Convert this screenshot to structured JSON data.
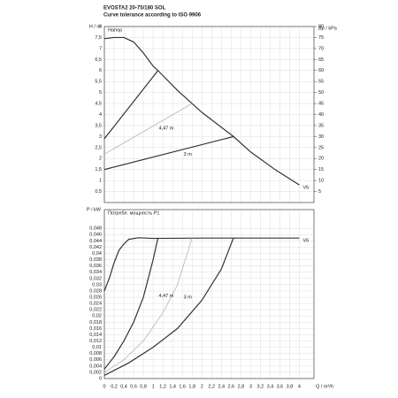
{
  "header": {
    "title": "EVOSTA2 20-75/180 SOL",
    "subtitle": "Curve tolerance according to ISO 9906"
  },
  "chart_data": [
    {
      "type": "line",
      "ylabel": "H / m",
      "title": "Напор",
      "y2label": "Δp / kPa",
      "xlim": [
        0,
        4.3
      ],
      "ylim": [
        0,
        8
      ],
      "y2lim": [
        0,
        80
      ],
      "xticks": [
        0,
        0.2,
        0.4,
        0.6,
        0.8,
        1,
        1.2,
        1.4,
        1.6,
        1.8,
        2,
        2.2,
        2.4,
        2.6,
        2.8,
        3,
        3.2,
        3.4,
        3.6,
        3.8,
        4
      ],
      "yticks": [
        {
          "value": 0.5,
          "label": "0,5"
        },
        1,
        {
          "value": 1.5,
          "label": "1,5"
        },
        2,
        {
          "value": 2.5,
          "label": "2,5"
        },
        3,
        {
          "value": 3.5,
          "label": "3,5"
        },
        4,
        {
          "value": 4.5,
          "label": "4,5"
        },
        5,
        {
          "value": 5.5,
          "label": "5,5"
        },
        6,
        {
          "value": 6.5,
          "label": "6,5"
        },
        7,
        {
          "value": 7.5,
          "label": "7,5"
        },
        8
      ],
      "y2ticks": [
        5,
        10,
        15,
        20,
        25,
        30,
        35,
        40,
        45,
        50,
        55,
        60,
        65,
        70,
        75,
        80
      ],
      "grid": true,
      "series": [
        {
          "name": "V6",
          "color": "#333333",
          "x": [
            0,
            0.2,
            0.4,
            0.6,
            0.8,
            1.0,
            1.1,
            1.5,
            2,
            2.65,
            3,
            3.5,
            4
          ],
          "values": [
            7.45,
            7.5,
            7.5,
            7.3,
            6.8,
            6.2,
            6.0,
            5.1,
            4.1,
            3.0,
            2.3,
            1.5,
            0.8
          ]
        },
        {
          "color": "#333333",
          "x": [
            0,
            1.1
          ],
          "values": [
            2.9,
            6.0
          ]
        },
        {
          "name": "4,47 m",
          "color": "#aaaaaa",
          "x": [
            0,
            1.8
          ],
          "values": [
            2.2,
            4.5
          ]
        },
        {
          "name": "3 m",
          "color": "#333333",
          "x": [
            0,
            2.65
          ],
          "values": [
            1.5,
            3.0
          ]
        }
      ]
    },
    {
      "type": "line",
      "ylabel": "P / kW",
      "title": "Потребл. мощность P1",
      "xlabel": "Q / m³/h",
      "xlim": [
        0,
        4.3
      ],
      "ylim": [
        0,
        0.054
      ],
      "xticks": [
        0,
        {
          "value": 0.2,
          "label": "0,2"
        },
        {
          "value": 0.4,
          "label": "0,4"
        },
        {
          "value": 0.6,
          "label": "0,6"
        },
        {
          "value": 0.8,
          "label": "0,8"
        },
        1,
        {
          "value": 1.2,
          "label": "1,2"
        },
        {
          "value": 1.4,
          "label": "1,4"
        },
        {
          "value": 1.6,
          "label": "1,6"
        },
        {
          "value": 1.8,
          "label": "1,8"
        },
        2,
        {
          "value": 2.2,
          "label": "2,2"
        },
        {
          "value": 2.4,
          "label": "2,4"
        },
        {
          "value": 2.6,
          "label": "2,6"
        },
        {
          "value": 2.8,
          "label": "2,8"
        },
        3,
        {
          "value": 3.2,
          "label": "3,2"
        },
        {
          "value": 3.4,
          "label": "3,4"
        },
        {
          "value": 3.6,
          "label": "3,6"
        },
        {
          "value": 3.8,
          "label": "3,8"
        },
        4
      ],
      "yticks": [
        0,
        {
          "value": 0.002,
          "label": "0,002"
        },
        {
          "value": 0.004,
          "label": "0,004"
        },
        {
          "value": 0.006,
          "label": "0,006"
        },
        {
          "value": 0.008,
          "label": "0,008"
        },
        {
          "value": 0.01,
          "label": "0,01"
        },
        {
          "value": 0.012,
          "label": "0,012"
        },
        {
          "value": 0.014,
          "label": "0,014"
        },
        {
          "value": 0.016,
          "label": "0,016"
        },
        {
          "value": 0.018,
          "label": "0,018"
        },
        {
          "value": 0.02,
          "label": "0,02"
        },
        {
          "value": 0.022,
          "label": "0,022"
        },
        {
          "value": 0.024,
          "label": "0,024"
        },
        {
          "value": 0.026,
          "label": "0,026"
        },
        {
          "value": 0.028,
          "label": "0,028"
        },
        {
          "value": 0.03,
          "label": "0,03"
        },
        {
          "value": 0.032,
          "label": "0,032"
        },
        {
          "value": 0.034,
          "label": "0,034"
        },
        {
          "value": 0.036,
          "label": "0,036"
        },
        {
          "value": 0.038,
          "label": "0,038"
        },
        {
          "value": 0.04,
          "label": "0,04"
        },
        {
          "value": 0.042,
          "label": "0,042"
        },
        {
          "value": 0.044,
          "label": "0,044"
        },
        {
          "value": 0.046,
          "label": "0,046"
        },
        {
          "value": 0.048,
          "label": "0,048"
        }
      ],
      "grid": true,
      "series": [
        {
          "name": "V6",
          "color": "#333333",
          "x": [
            0,
            0.1,
            0.2,
            0.3,
            0.4,
            0.5,
            0.7,
            1,
            2,
            3,
            4
          ],
          "values": [
            0.028,
            0.032,
            0.037,
            0.041,
            0.043,
            0.0445,
            0.045,
            0.0448,
            0.0449,
            0.0449,
            0.0449
          ]
        },
        {
          "color": "#333333",
          "x": [
            0,
            0.2,
            0.4,
            0.6,
            0.8,
            1.0,
            1.1
          ],
          "values": [
            0.003,
            0.007,
            0.012,
            0.018,
            0.026,
            0.038,
            0.045
          ]
        },
        {
          "name": "4,47 m",
          "color": "#aaaaaa",
          "x": [
            0,
            0.4,
            0.8,
            1.2,
            1.5,
            1.8
          ],
          "values": [
            0.002,
            0.006,
            0.012,
            0.021,
            0.03,
            0.045
          ]
        },
        {
          "name": "3 m",
          "color": "#333333",
          "x": [
            0,
            0.5,
            1,
            1.5,
            2,
            2.4,
            2.65
          ],
          "values": [
            0.001,
            0.005,
            0.01,
            0.016,
            0.025,
            0.035,
            0.045
          ]
        }
      ]
    }
  ]
}
